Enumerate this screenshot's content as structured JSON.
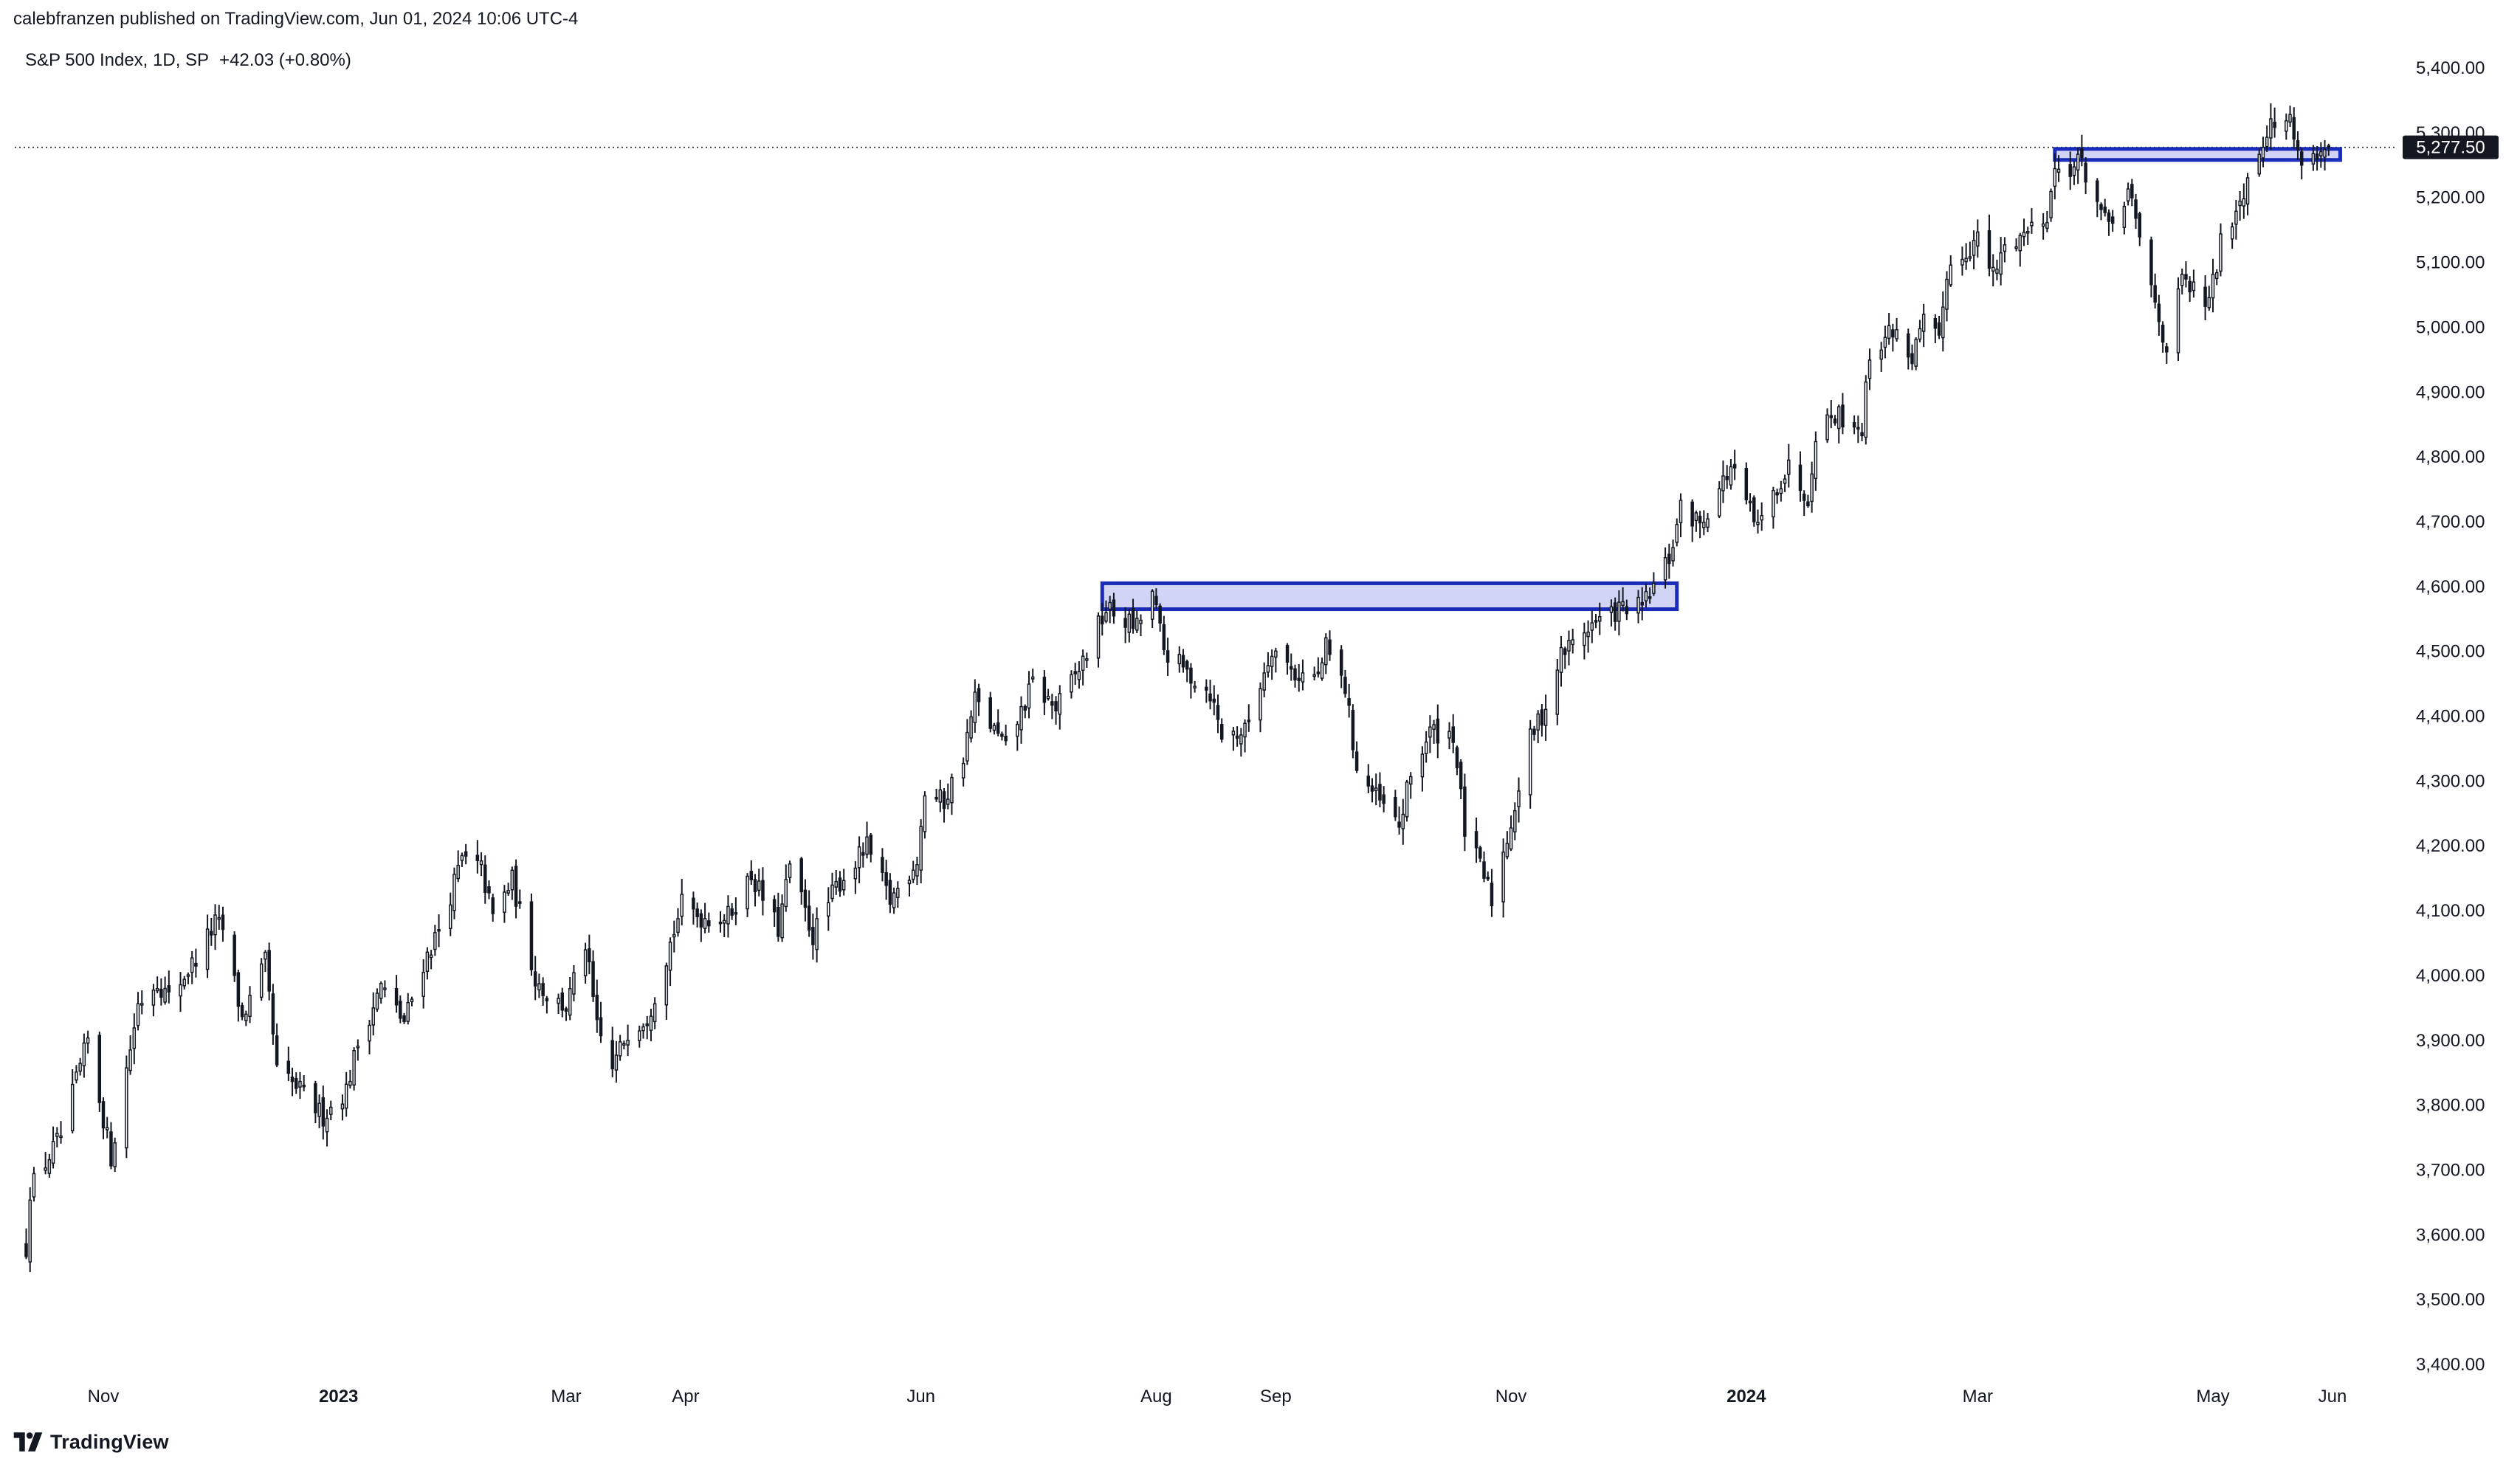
{
  "header": {
    "publisher_line": "calebfranzen published on TradingView.com, Jun 01, 2024 10:06 UTC-4"
  },
  "legend": {
    "symbol": "S&P 500 Index, 1D, SP",
    "change": "+42.03 (+0.80%)"
  },
  "footer": {
    "brand": "TradingView",
    "logo_icon": "tradingview-logo-icon"
  },
  "colors": {
    "candle": "#131722",
    "zone_border": "#1a2bb8",
    "zone_fill": "#c9ccf3",
    "price_label_bg": "#131722",
    "price_label_text": "#ffffff"
  },
  "chart_data": {
    "type": "candlestick",
    "title": "",
    "xlabel": "",
    "ylabel": "",
    "ylim": [
      3400,
      5400
    ],
    "y_ticks": [
      "3,400.00",
      "3,500.00",
      "3,600.00",
      "3,700.00",
      "3,800.00",
      "3,900.00",
      "4,000.00",
      "4,100.00",
      "4,200.00",
      "4,300.00",
      "4,400.00",
      "4,500.00",
      "4,600.00",
      "4,700.00",
      "4,800.00",
      "4,900.00",
      "5,000.00",
      "5,100.00",
      "5,200.00",
      "5,300.00",
      "5,400.00"
    ],
    "x_ticks": [
      {
        "label": "Nov",
        "date": "2022-11-01",
        "bold": false
      },
      {
        "label": "2023",
        "date": "2023-01-01",
        "bold": true
      },
      {
        "label": "Mar",
        "date": "2023-03-01",
        "bold": false
      },
      {
        "label": "Apr",
        "date": "2023-04-01",
        "bold": false
      },
      {
        "label": "Jun",
        "date": "2023-06-01",
        "bold": false
      },
      {
        "label": "Aug",
        "date": "2023-08-01",
        "bold": false
      },
      {
        "label": "Sep",
        "date": "2023-09-01",
        "bold": false
      },
      {
        "label": "Nov",
        "date": "2023-11-01",
        "bold": false
      },
      {
        "label": "2024",
        "date": "2024-01-01",
        "bold": true
      },
      {
        "label": "Mar",
        "date": "2024-03-01",
        "bold": false
      },
      {
        "label": "May",
        "date": "2024-05-01",
        "bold": false
      },
      {
        "label": "Jun",
        "date": "2024-06-01",
        "bold": false
      }
    ],
    "last_price": 5277.5,
    "last_price_label": "5,277.50",
    "zones": [
      {
        "from_date": "2023-07-18",
        "to_date": "2023-12-14",
        "low": 4565,
        "high": 4605
      },
      {
        "from_date": "2024-03-21",
        "to_date": "2024-06-03",
        "low": 5258,
        "high": 5275
      }
    ],
    "close_path": [
      [
        "2022-10-12",
        3580
      ],
      [
        "2022-10-13",
        3670
      ],
      [
        "2022-10-21",
        3752
      ],
      [
        "2022-10-28",
        3900
      ],
      [
        "2022-11-03",
        3720
      ],
      [
        "2022-11-10",
        3956
      ],
      [
        "2022-11-15",
        3992
      ],
      [
        "2022-11-18",
        3965
      ],
      [
        "2022-11-25",
        4026
      ],
      [
        "2022-11-30",
        4080
      ],
      [
        "2022-12-02",
        4071
      ],
      [
        "2022-12-07",
        3933
      ],
      [
        "2022-12-13",
        4019
      ],
      [
        "2022-12-16",
        3852
      ],
      [
        "2022-12-22",
        3822
      ],
      [
        "2022-12-28",
        3783
      ],
      [
        "2023-01-03",
        3824
      ],
      [
        "2023-01-06",
        3895
      ],
      [
        "2023-01-12",
        3983
      ],
      [
        "2023-01-18",
        3928
      ],
      [
        "2023-01-23",
        4019
      ],
      [
        "2023-01-27",
        4070
      ],
      [
        "2023-02-02",
        4179
      ],
      [
        "2023-02-07",
        4164
      ],
      [
        "2023-02-10",
        4090
      ],
      [
        "2023-02-15",
        4147
      ],
      [
        "2023-02-21",
        3997
      ],
      [
        "2023-02-24",
        3970
      ],
      [
        "2023-03-01",
        3951
      ],
      [
        "2023-03-06",
        4048
      ],
      [
        "2023-03-09",
        3918
      ],
      [
        "2023-03-13",
        3855
      ],
      [
        "2023-03-17",
        3916
      ],
      [
        "2023-03-22",
        3937
      ],
      [
        "2023-03-24",
        3971
      ],
      [
        "2023-03-31",
        4109
      ],
      [
        "2023-04-05",
        4090
      ],
      [
        "2023-04-12",
        4091
      ],
      [
        "2023-04-18",
        4155
      ],
      [
        "2023-04-25",
        4071
      ],
      [
        "2023-04-28",
        4169
      ],
      [
        "2023-05-04",
        4061
      ],
      [
        "2023-05-10",
        4137
      ],
      [
        "2023-05-18",
        4198
      ],
      [
        "2023-05-24",
        4115
      ],
      [
        "2023-05-31",
        4180
      ],
      [
        "2023-06-02",
        4282
      ],
      [
        "2023-06-07",
        4268
      ],
      [
        "2023-06-12",
        4339
      ],
      [
        "2023-06-15",
        4426
      ],
      [
        "2023-06-23",
        4348
      ],
      [
        "2023-06-30",
        4450
      ],
      [
        "2023-07-06",
        4411
      ],
      [
        "2023-07-12",
        4472
      ],
      [
        "2023-07-19",
        4565
      ],
      [
        "2023-07-27",
        4537
      ],
      [
        "2023-07-31",
        4589
      ],
      [
        "2023-08-03",
        4502
      ],
      [
        "2023-08-09",
        4467
      ],
      [
        "2023-08-15",
        4437
      ],
      [
        "2023-08-18",
        4370
      ],
      [
        "2023-08-24",
        4376
      ],
      [
        "2023-08-31",
        4508
      ],
      [
        "2023-09-06",
        4465
      ],
      [
        "2023-09-12",
        4461
      ],
      [
        "2023-09-14",
        4505
      ],
      [
        "2023-09-19",
        4443
      ],
      [
        "2023-09-22",
        4320
      ],
      [
        "2023-09-27",
        4274
      ],
      [
        "2023-10-03",
        4229
      ],
      [
        "2023-10-06",
        4308
      ],
      [
        "2023-10-11",
        4376
      ],
      [
        "2023-10-17",
        4373
      ],
      [
        "2023-10-20",
        4224
      ],
      [
        "2023-10-26",
        4137
      ],
      [
        "2023-10-27",
        4117
      ],
      [
        "2023-11-01",
        4237
      ],
      [
        "2023-11-06",
        4365
      ],
      [
        "2023-11-10",
        4415
      ],
      [
        "2023-11-14",
        4495
      ],
      [
        "2023-11-21",
        4538
      ],
      [
        "2023-11-30",
        4567
      ],
      [
        "2023-12-05",
        4567
      ],
      [
        "2023-12-12",
        4643
      ],
      [
        "2023-12-15",
        4719
      ],
      [
        "2023-12-20",
        4698
      ],
      [
        "2023-12-28",
        4783
      ],
      [
        "2024-01-04",
        4688
      ],
      [
        "2024-01-09",
        4756
      ],
      [
        "2024-01-12",
        4783
      ],
      [
        "2024-01-17",
        4739
      ],
      [
        "2024-01-19",
        4839
      ],
      [
        "2024-01-24",
        4868
      ],
      [
        "2024-01-31",
        4845
      ],
      [
        "2024-02-02",
        4958
      ],
      [
        "2024-02-08",
        4997
      ],
      [
        "2024-02-13",
        4953
      ],
      [
        "2024-02-16",
        5005
      ],
      [
        "2024-02-20",
        4975
      ],
      [
        "2024-02-22",
        5087
      ],
      [
        "2024-03-01",
        5137
      ],
      [
        "2024-03-05",
        5078
      ],
      [
        "2024-03-08",
        5123
      ],
      [
        "2024-03-14",
        5150
      ],
      [
        "2024-03-19",
        5178
      ],
      [
        "2024-03-21",
        5241
      ],
      [
        "2024-03-28",
        5254
      ],
      [
        "2024-04-04",
        5147
      ],
      [
        "2024-04-09",
        5209
      ],
      [
        "2024-04-15",
        5061
      ],
      [
        "2024-04-19",
        4967
      ],
      [
        "2024-04-23",
        5070
      ],
      [
        "2024-04-30",
        5035
      ],
      [
        "2024-05-03",
        5128
      ],
      [
        "2024-05-09",
        5214
      ],
      [
        "2024-05-15",
        5308
      ],
      [
        "2024-05-21",
        5321
      ],
      [
        "2024-05-23",
        5267
      ],
      [
        "2024-05-29",
        5266
      ],
      [
        "2024-05-31",
        5277
      ]
    ]
  }
}
